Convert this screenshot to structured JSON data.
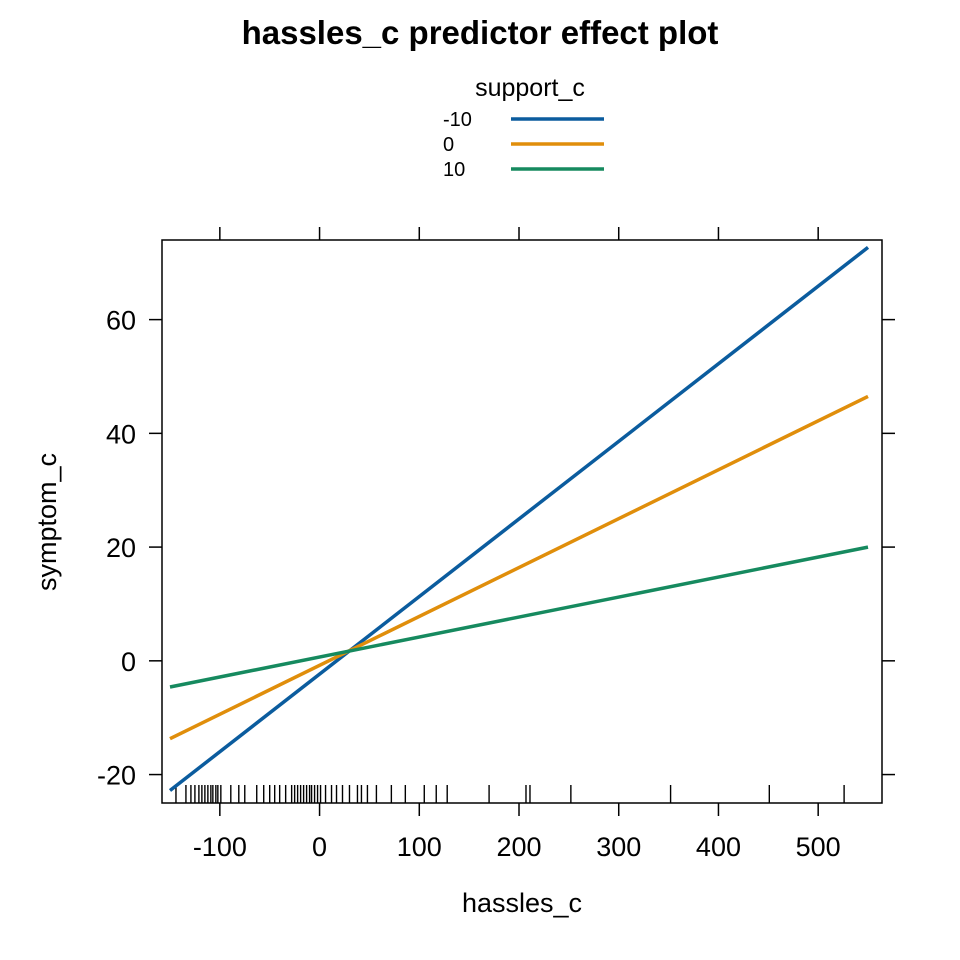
{
  "chart_data": {
    "type": "line",
    "title": "hassles_c predictor effect plot",
    "xlabel": "hassles_c",
    "ylabel": "symptom_c",
    "xlim": [
      -158,
      564
    ],
    "ylim": [
      -25,
      74
    ],
    "xticks": [
      -100,
      0,
      100,
      200,
      300,
      400,
      500
    ],
    "yticks": [
      -20,
      0,
      20,
      40,
      60
    ],
    "legend": {
      "title": "support_c",
      "placement": "top-center"
    },
    "series": [
      {
        "name": "-10",
        "color": "#0b5c9e",
        "x": [
          -150,
          550
        ],
        "y": [
          -22.8,
          72.7
        ]
      },
      {
        "name": "0",
        "color": "#e08e0b",
        "x": [
          -150,
          550
        ],
        "y": [
          -13.7,
          46.5
        ]
      },
      {
        "name": "10",
        "color": "#168a5f",
        "x": [
          -150,
          550
        ],
        "y": [
          -4.6,
          20.0
        ]
      }
    ],
    "rug": [
      -144,
      -134,
      -129,
      -125,
      -121,
      -118,
      -115,
      -112,
      -109,
      -107,
      -104,
      -102,
      -99,
      -89,
      -81,
      -75,
      -63,
      -56,
      -50,
      -45,
      -40,
      -34,
      -28,
      -25,
      -22,
      -19,
      -16,
      -13,
      -10,
      -8,
      -5,
      -2,
      1,
      6,
      12,
      17,
      23,
      30,
      38,
      42,
      48,
      57,
      72,
      86,
      105,
      117,
      128,
      170,
      207,
      211,
      252,
      352,
      451,
      526
    ]
  }
}
